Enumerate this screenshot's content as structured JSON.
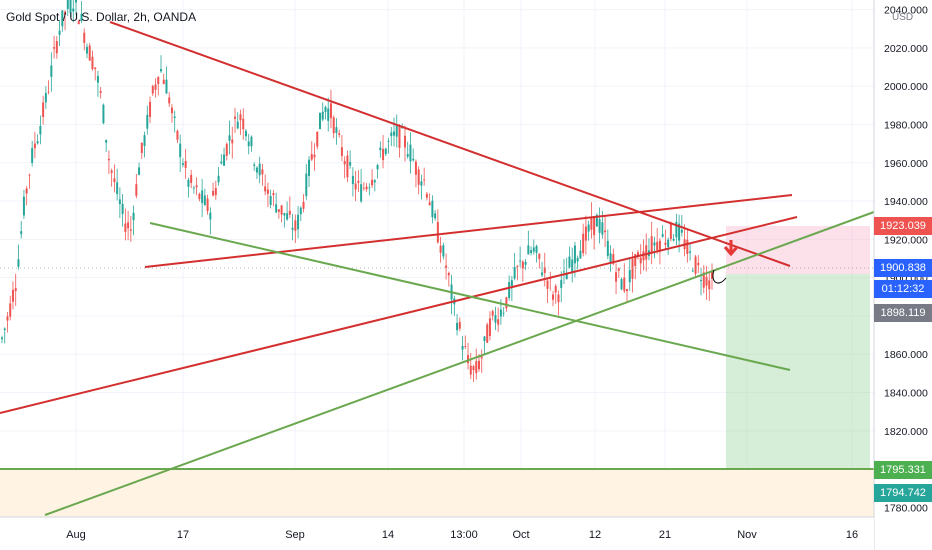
{
  "header": {
    "title": "Gold Spot / U.S. Dollar, 2h, OANDA"
  },
  "price_axis": {
    "currency": "USD",
    "ticks": [
      "2040.000",
      "2020.000",
      "2000.000",
      "1980.000",
      "1960.000",
      "1940.000",
      "1920.000",
      "1900.000",
      "1880.000",
      "1860.000",
      "1840.000",
      "1820.000",
      "1800.000",
      "1780.000"
    ],
    "labels": [
      {
        "name": "price-label-target-high",
        "value": "1923.039",
        "color": "#ef5350"
      },
      {
        "name": "price-label-current",
        "value": "1900.838",
        "color": "#2962ff"
      },
      {
        "name": "price-label-countdown",
        "value": "01:12:32",
        "color": "#2962ff"
      },
      {
        "name": "price-label-last-close",
        "value": "1898.119",
        "color": "#787b86"
      },
      {
        "name": "price-label-support-level",
        "value": "1795.331",
        "color": "#4caf50"
      },
      {
        "name": "price-label-stop-target",
        "value": "1794.742",
        "color": "#26a69a"
      }
    ]
  },
  "time_axis": {
    "ticks": [
      "Aug",
      "17",
      "Sep",
      "14",
      "13:00",
      "Oct",
      "12",
      "21",
      "Nov",
      "16"
    ]
  },
  "chart_data": {
    "type": "candlestick",
    "instrument": "Gold Spot / U.S. Dollar",
    "timeframe": "2h",
    "source": "OANDA",
    "ylim": [
      1775,
      2045
    ],
    "current_price": 1900.838,
    "price_labels": [
      1923.039,
      1900.838,
      1898.119,
      1795.331,
      1794.742
    ],
    "approx_closes": [
      1868,
      1882,
      1900,
      1935,
      1960,
      1975,
      1990,
      2010,
      2030,
      2040,
      2045,
      2035,
      2020,
      2010,
      1990,
      1960,
      1945,
      1930,
      1925,
      1955,
      1975,
      1995,
      2010,
      2000,
      1980,
      1965,
      1950,
      1945,
      1940,
      1935,
      1950,
      1965,
      1975,
      1985,
      1980,
      1965,
      1955,
      1945,
      1940,
      1935,
      1930,
      1925,
      1940,
      1960,
      1975,
      1990,
      1985,
      1970,
      1960,
      1950,
      1945,
      1950,
      1955,
      1965,
      1970,
      1975,
      1972,
      1965,
      1955,
      1950,
      1935,
      1920,
      1905,
      1885,
      1870,
      1855,
      1850,
      1860,
      1875,
      1880,
      1885,
      1895,
      1905,
      1910,
      1915,
      1908,
      1900,
      1890,
      1895,
      1905,
      1912,
      1918,
      1925,
      1930,
      1922,
      1910,
      1900,
      1895,
      1905,
      1910,
      1915,
      1918,
      1920,
      1922,
      1925,
      1920,
      1910,
      1905,
      1900,
      1898
    ]
  },
  "overlays": {
    "drawings": [
      "descending-trendline",
      "rising-resistance-line",
      "falling-green-line",
      "rising-support-line",
      "horizontal-support-line",
      "long-position-tool",
      "arrow-down-marker",
      "curved-arrow-marker"
    ],
    "colors": {
      "red": "#d32f2f",
      "green": "#6aa84f",
      "bull": "#26a69a",
      "bear": "#ef5350"
    }
  }
}
